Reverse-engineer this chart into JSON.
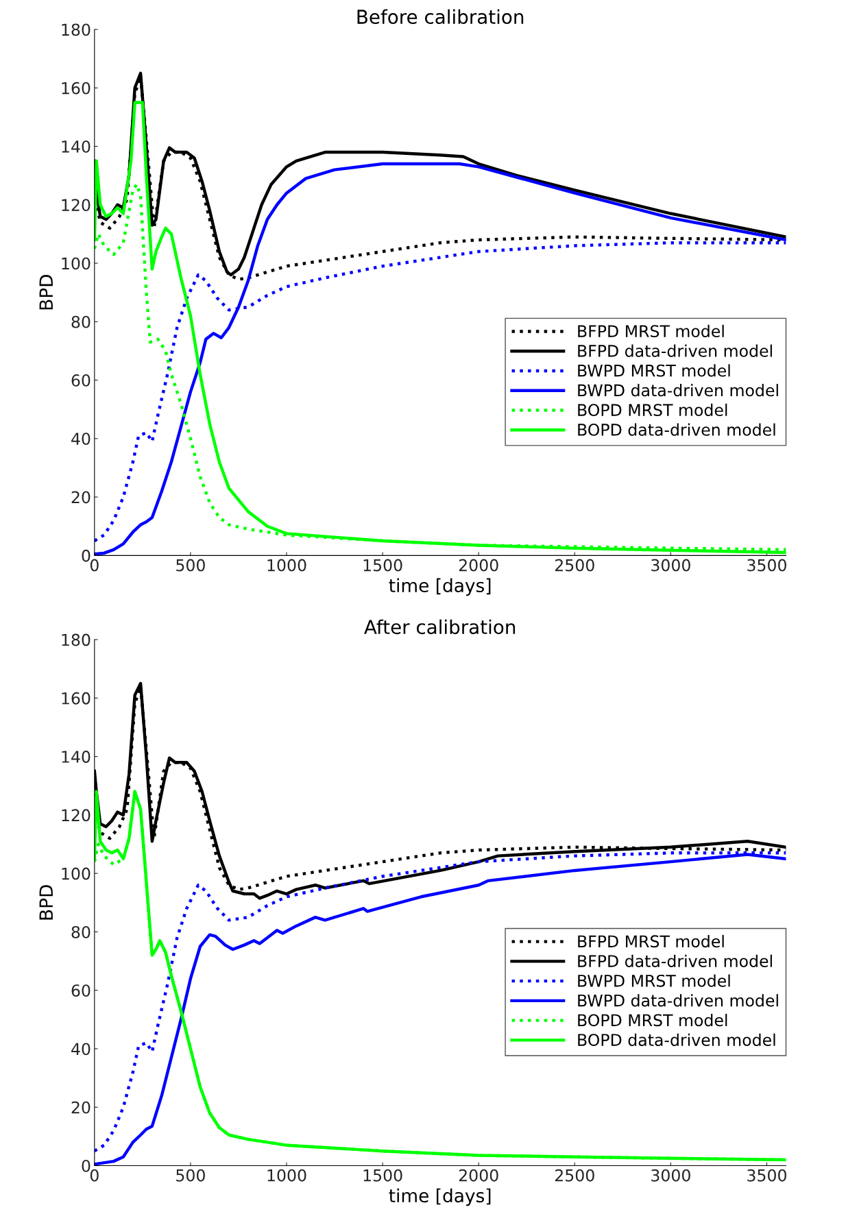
{
  "chart_data": [
    {
      "type": "line",
      "title": "Before calibration",
      "xlabel": "time [days]",
      "ylabel": "BPD",
      "xlim": [
        0,
        3600
      ],
      "ylim": [
        0,
        180
      ],
      "xticks": [
        0,
        500,
        1000,
        1500,
        2000,
        2500,
        3000,
        3500
      ],
      "yticks": [
        0,
        20,
        40,
        60,
        80,
        100,
        120,
        140,
        160,
        180
      ],
      "grid": false,
      "legend": "right",
      "series": [
        {
          "name": "BFPD MRST model",
          "color": "#000000",
          "line_style": "dotted",
          "x": [
            0,
            10,
            30,
            80,
            130,
            170,
            210,
            240,
            280,
            310,
            360,
            400,
            450,
            500,
            550,
            600,
            650,
            700,
            750,
            800,
            900,
            1000,
            1200,
            1500,
            1800,
            2000,
            2500,
            3000,
            3600
          ],
          "values": [
            130,
            120,
            114,
            112,
            116,
            122,
            158,
            164,
            135,
            112,
            135,
            138,
            138,
            136,
            128,
            115,
            102,
            96,
            94.5,
            95,
            97,
            99,
            101,
            104,
            107,
            108,
            109,
            108.5,
            108
          ]
        },
        {
          "name": "BFPD data-driven model",
          "color": "#000000",
          "line_style": "solid",
          "x": [
            0,
            10,
            30,
            60,
            90,
            120,
            150,
            180,
            210,
            240,
            270,
            300,
            320,
            360,
            390,
            420,
            480,
            520,
            560,
            600,
            650,
            690,
            710,
            750,
            780,
            820,
            870,
            920,
            1000,
            1050,
            1200,
            1500,
            1800,
            1920,
            2000,
            2200,
            2500,
            3000,
            3600
          ],
          "values": [
            135,
            125,
            116,
            115,
            117,
            120,
            119,
            130,
            160,
            165,
            140,
            113,
            115,
            135,
            139.5,
            138,
            138,
            136,
            128,
            118,
            104,
            97,
            96,
            98,
            102,
            110,
            120,
            127,
            133,
            135,
            138,
            138,
            137,
            136.5,
            134,
            130,
            125,
            117,
            109
          ]
        },
        {
          "name": "BWPD MRST model",
          "color": "#0000ff",
          "line_style": "dotted",
          "x": [
            0,
            50,
            100,
            150,
            200,
            230,
            270,
            300,
            330,
            380,
            430,
            480,
            540,
            580,
            640,
            700,
            800,
            900,
            1000,
            1200,
            1500,
            2000,
            2500,
            3000,
            3600
          ],
          "values": [
            5,
            7,
            12,
            20,
            32,
            41,
            42,
            39,
            48,
            62,
            78,
            88,
            96,
            94,
            88,
            84,
            85,
            89,
            92,
            95,
            99,
            104,
            106,
            107,
            107
          ]
        },
        {
          "name": "BWPD data-driven model",
          "color": "#0000ff",
          "line_style": "solid",
          "x": [
            0,
            50,
            100,
            150,
            200,
            240,
            270,
            300,
            350,
            400,
            450,
            500,
            550,
            580,
            620,
            660,
            700,
            750,
            800,
            850,
            900,
            950,
            1000,
            1100,
            1250,
            1500,
            1900,
            2000,
            2500,
            3000,
            3600
          ],
          "values": [
            0.5,
            0.8,
            2,
            4,
            8,
            10.5,
            11.5,
            13,
            22,
            32,
            44,
            56,
            66,
            74,
            76,
            74.5,
            78,
            85,
            94,
            106,
            115,
            120,
            124,
            129,
            132,
            134,
            134,
            133,
            124,
            115.5,
            108
          ]
        },
        {
          "name": "BOPD MRST model",
          "color": "#00ff00",
          "line_style": "dotted",
          "x": [
            0,
            20,
            50,
            100,
            150,
            200,
            220,
            240,
            270,
            290,
            330,
            370,
            400,
            450,
            500,
            550,
            600,
            650,
            700,
            800,
            900,
            1000,
            1500,
            2000,
            2500,
            3000,
            3600
          ],
          "values": [
            105,
            110,
            106,
            103,
            107,
            125,
            127,
            123,
            90,
            73,
            74,
            70,
            62,
            52,
            40,
            27,
            18,
            13,
            10.5,
            9,
            8,
            7,
            5,
            3.5,
            3,
            2.5,
            2
          ]
        },
        {
          "name": "BOPD data-driven model",
          "color": "#00ff00",
          "line_style": "solid",
          "x": [
            0,
            10,
            30,
            60,
            90,
            120,
            150,
            190,
            210,
            250,
            270,
            300,
            320,
            350,
            370,
            400,
            450,
            500,
            550,
            600,
            650,
            700,
            800,
            900,
            1000,
            1500,
            2000,
            2500,
            3000,
            3600
          ],
          "values": [
            108,
            135,
            120,
            116,
            117,
            119,
            117,
            135,
            155,
            155,
            130,
            98,
            104,
            109,
            112,
            110,
            95,
            82,
            62,
            45,
            32,
            23,
            15,
            10,
            7.5,
            5,
            3.5,
            2.5,
            1.8,
            1
          ]
        }
      ]
    },
    {
      "type": "line",
      "title": "After calibration",
      "xlabel": "time [days]",
      "ylabel": "BPD",
      "xlim": [
        0,
        3600
      ],
      "ylim": [
        0,
        180
      ],
      "xticks": [
        0,
        500,
        1000,
        1500,
        2000,
        2500,
        3000,
        3500
      ],
      "yticks": [
        0,
        20,
        40,
        60,
        80,
        100,
        120,
        140,
        160,
        180
      ],
      "grid": false,
      "legend": "right",
      "series": [
        {
          "name": "BFPD MRST model",
          "color": "#000000",
          "line_style": "dotted",
          "x": [
            0,
            10,
            30,
            80,
            130,
            170,
            210,
            240,
            280,
            310,
            360,
            400,
            450,
            500,
            550,
            600,
            650,
            700,
            750,
            800,
            900,
            1000,
            1200,
            1500,
            1800,
            2000,
            2500,
            3000,
            3600
          ],
          "values": [
            130,
            120,
            114,
            112,
            116,
            122,
            158,
            164,
            135,
            112,
            135,
            138,
            138,
            136,
            128,
            115,
            102,
            96,
            94.5,
            95,
            97,
            99,
            101,
            104,
            107,
            108,
            109,
            108.5,
            108
          ]
        },
        {
          "name": "BFPD data-driven model",
          "color": "#000000",
          "line_style": "solid",
          "x": [
            0,
            10,
            30,
            60,
            90,
            120,
            150,
            180,
            210,
            240,
            270,
            300,
            320,
            360,
            390,
            420,
            480,
            520,
            560,
            600,
            650,
            700,
            720,
            780,
            830,
            860,
            900,
            950,
            1000,
            1050,
            1150,
            1200,
            1400,
            1430,
            1800,
            2000,
            2100,
            2500,
            3000,
            3400,
            3600
          ],
          "values": [
            135,
            128,
            117,
            116,
            118,
            121,
            120,
            134,
            161,
            165,
            140,
            111,
            118,
            131,
            139.5,
            138,
            138,
            135,
            128,
            118,
            106,
            97,
            94,
            93,
            93,
            91.5,
            92.5,
            94,
            93,
            94.5,
            96,
            95,
            97.5,
            96.5,
            101,
            104,
            106,
            107.5,
            109,
            111,
            109
          ]
        },
        {
          "name": "BWPD MRST model",
          "color": "#0000ff",
          "line_style": "dotted",
          "x": [
            0,
            50,
            100,
            150,
            200,
            230,
            270,
            300,
            330,
            380,
            430,
            480,
            540,
            580,
            640,
            700,
            800,
            900,
            1000,
            1200,
            1500,
            2000,
            2500,
            3000,
            3600
          ],
          "values": [
            5,
            7,
            12,
            20,
            32,
            41,
            42,
            39,
            48,
            62,
            78,
            88,
            96,
            94,
            88,
            84,
            85,
            89,
            92,
            95,
            99,
            104,
            106,
            107,
            107
          ]
        },
        {
          "name": "BWPD data-driven model",
          "color": "#0000ff",
          "line_style": "solid",
          "x": [
            0,
            100,
            150,
            200,
            240,
            270,
            300,
            350,
            400,
            450,
            500,
            550,
            600,
            630,
            680,
            720,
            780,
            830,
            860,
            900,
            950,
            980,
            1050,
            1150,
            1200,
            1400,
            1420,
            1700,
            2000,
            2050,
            2500,
            3000,
            3400,
            3600
          ],
          "values": [
            0.5,
            1.5,
            3,
            8,
            10.5,
            12.5,
            13.5,
            24,
            37,
            50,
            64,
            75,
            79,
            78.5,
            75.5,
            74,
            75.5,
            77,
            76,
            78,
            80.5,
            79.5,
            82,
            85,
            84,
            88,
            87,
            92,
            96,
            97.5,
            101,
            104,
            106.5,
            105
          ]
        },
        {
          "name": "BOPD MRST model",
          "color": "#00ff00",
          "line_style": "dotted",
          "x": [
            0,
            20,
            50,
            100,
            150,
            180,
            210,
            240,
            270,
            300,
            320,
            340,
            370,
            400,
            450,
            500,
            550,
            600,
            650,
            700,
            800,
            900,
            1000,
            1500,
            2000,
            2500,
            3000,
            3600
          ],
          "values": [
            104,
            110,
            106,
            103,
            105,
            112,
            128,
            122,
            97,
            72,
            74,
            77,
            73,
            65,
            53,
            40,
            27,
            18,
            13,
            10.5,
            9,
            8,
            7,
            5,
            3.5,
            3,
            2.5,
            2
          ]
        },
        {
          "name": "BOPD data-driven model",
          "color": "#00ff00",
          "line_style": "solid",
          "x": [
            0,
            10,
            30,
            60,
            90,
            120,
            150,
            180,
            210,
            240,
            270,
            300,
            320,
            340,
            370,
            400,
            450,
            500,
            550,
            600,
            650,
            700,
            800,
            900,
            1000,
            1500,
            2000,
            2500,
            3000,
            3600
          ],
          "values": [
            105,
            128,
            111,
            108,
            107,
            108,
            105,
            112,
            128,
            122,
            97,
            72,
            74,
            77,
            73,
            65,
            53,
            40,
            27,
            18,
            13,
            10.5,
            9,
            8,
            7,
            5,
            3.5,
            3,
            2.5,
            2
          ]
        }
      ]
    }
  ]
}
